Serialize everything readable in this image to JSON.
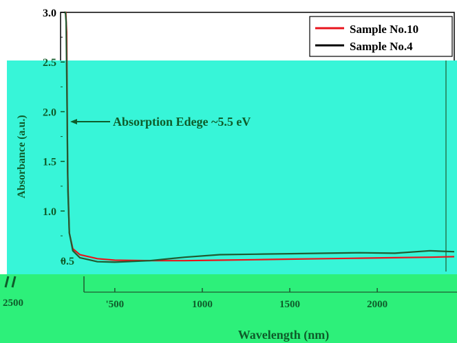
{
  "colors": {
    "overlay_cyan": "#37F5D8",
    "overlay_green": "#2DF07A",
    "series_red": "#E8141C",
    "series_black": "#000000",
    "overlay_line": "#1F5A30",
    "overlay_text": "#0E5C2A"
  },
  "chart_data": {
    "type": "line",
    "xlabel": "Wavelength (nm)",
    "ylabel": "Absorbance (a.u.)",
    "xlim": [
      190,
      2440
    ],
    "ylim": [
      0.37,
      3.0
    ],
    "y_ticks": [
      {
        "value": 3.0,
        "label": "3.0"
      },
      {
        "value": 2.5,
        "label": "2.5"
      },
      {
        "value": 2.0,
        "label": "2.0"
      },
      {
        "value": 1.5,
        "label": "1.5"
      },
      {
        "value": 1.0,
        "label": "1.0"
      },
      {
        "value": 0.5,
        "label": "0.5"
      }
    ],
    "x_ticks": [
      {
        "value": 500,
        "label": "'500"
      },
      {
        "value": 1000,
        "label": "1000"
      },
      {
        "value": 1500,
        "label": "1500"
      },
      {
        "value": 2000,
        "label": "2000"
      }
    ],
    "left_edge_label": "2500",
    "legend": {
      "position": "top-right",
      "entries": [
        "Sample No.10",
        "Sample No.4"
      ]
    },
    "annotation": {
      "text": "Absorption Edege ~5.5 eV",
      "x": 225,
      "y": 2.0
    },
    "series": [
      {
        "name": "Sample No.10",
        "color": "#E8141C",
        "x": [
          210,
          211,
          213,
          216,
          220,
          225,
          230,
          240,
          260,
          300,
          400,
          500,
          700,
          900,
          1100,
          1300,
          1500,
          1700,
          1900,
          2100,
          2300,
          2440
        ],
        "y": [
          3.0,
          3.0,
          3.0,
          3.0,
          3.0,
          2.8,
          1.4,
          0.78,
          0.62,
          0.56,
          0.52,
          0.505,
          0.5,
          0.5,
          0.505,
          0.51,
          0.515,
          0.52,
          0.525,
          0.53,
          0.535,
          0.54
        ]
      },
      {
        "name": "Sample No.4",
        "color": "#000000",
        "x": [
          210,
          212,
          215,
          218,
          222,
          226,
          232,
          240,
          260,
          300,
          400,
          500,
          700,
          900,
          1100,
          1300,
          1500,
          1700,
          1900,
          2100,
          2300,
          2440
        ],
        "y": [
          3.0,
          3.0,
          3.0,
          3.0,
          2.9,
          2.2,
          1.2,
          0.78,
          0.6,
          0.53,
          0.49,
          0.485,
          0.5,
          0.535,
          0.56,
          0.565,
          0.57,
          0.575,
          0.58,
          0.575,
          0.6,
          0.59
        ]
      }
    ]
  }
}
